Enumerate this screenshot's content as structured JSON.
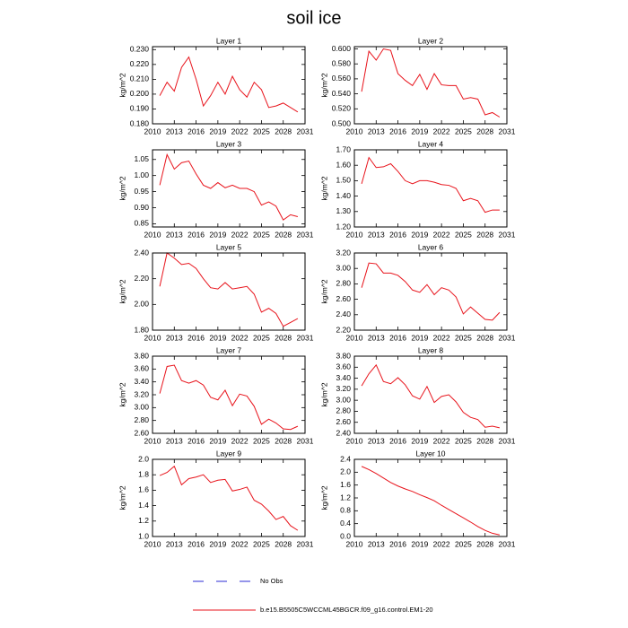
{
  "title": "soil ice",
  "legend": [
    {
      "name": "No Obs",
      "color": "#2b2bd6",
      "dashed": true
    },
    {
      "name": "b.e15.B5505C5WCCML45BGCR.f09_g16.control.EM1-20",
      "color": "#e8141c",
      "dashed": false
    }
  ],
  "chart_data": [
    {
      "type": "line",
      "title": "Layer 1",
      "ylabel": "kg/m^2",
      "color": "#e8141c",
      "x": [
        2011,
        2012,
        2013,
        2014,
        2015,
        2016,
        2017,
        2018,
        2019,
        2020,
        2021,
        2022,
        2023,
        2024,
        2025,
        2026,
        2027,
        2028,
        2029,
        2030
      ],
      "values": [
        0.199,
        0.208,
        0.202,
        0.218,
        0.225,
        0.21,
        0.192,
        0.199,
        0.208,
        0.2,
        0.212,
        0.203,
        0.198,
        0.208,
        0.203,
        0.191,
        0.192,
        0.194,
        0.191,
        0.188
      ],
      "xlim": [
        2010,
        2031
      ],
      "xticks": [
        2010,
        2013,
        2016,
        2019,
        2022,
        2025,
        2028,
        2031
      ],
      "ylim": [
        0.18,
        0.232
      ],
      "yticks": [
        {
          "value": 0.18,
          "label": "0.180"
        },
        {
          "value": 0.19,
          "label": "0.190"
        },
        {
          "value": 0.2,
          "label": "0.200"
        },
        {
          "value": 0.21,
          "label": "0.210"
        },
        {
          "value": 0.22,
          "label": "0.220"
        },
        {
          "value": 0.23,
          "label": "0.230"
        }
      ]
    },
    {
      "type": "line",
      "title": "Layer 2",
      "ylabel": "kg/m^2",
      "color": "#e8141c",
      "x": [
        2011,
        2012,
        2013,
        2014,
        2015,
        2016,
        2017,
        2018,
        2019,
        2020,
        2021,
        2022,
        2023,
        2024,
        2025,
        2026,
        2027,
        2028,
        2029,
        2030
      ],
      "values": [
        0.543,
        0.597,
        0.585,
        0.6,
        0.598,
        0.567,
        0.558,
        0.551,
        0.566,
        0.546,
        0.567,
        0.552,
        0.551,
        0.551,
        0.533,
        0.535,
        0.533,
        0.512,
        0.515,
        0.509
      ],
      "xlim": [
        2010,
        2031
      ],
      "xticks": [
        2010,
        2013,
        2016,
        2019,
        2022,
        2025,
        2028,
        2031
      ],
      "ylim": [
        0.5,
        0.603
      ],
      "yticks": [
        {
          "value": 0.5,
          "label": "0.500"
        },
        {
          "value": 0.52,
          "label": "0.520"
        },
        {
          "value": 0.54,
          "label": "0.540"
        },
        {
          "value": 0.56,
          "label": "0.560"
        },
        {
          "value": 0.58,
          "label": "0.580"
        },
        {
          "value": 0.6,
          "label": "0.600"
        }
      ]
    },
    {
      "type": "line",
      "title": "Layer 3",
      "ylabel": "kg/m^2",
      "color": "#e8141c",
      "x": [
        2011,
        2012,
        2013,
        2014,
        2015,
        2016,
        2017,
        2018,
        2019,
        2020,
        2021,
        2022,
        2023,
        2024,
        2025,
        2026,
        2027,
        2028,
        2029,
        2030
      ],
      "values": [
        0.97,
        1.065,
        1.02,
        1.04,
        1.045,
        1.005,
        0.97,
        0.96,
        0.978,
        0.962,
        0.97,
        0.96,
        0.96,
        0.95,
        0.908,
        0.918,
        0.905,
        0.862,
        0.878,
        0.872
      ],
      "xlim": [
        2010,
        2031
      ],
      "xticks": [
        2010,
        2013,
        2016,
        2019,
        2022,
        2025,
        2028,
        2031
      ],
      "ylim": [
        0.84,
        1.08
      ],
      "yticks": [
        {
          "value": 0.85,
          "label": "0.85"
        },
        {
          "value": 0.9,
          "label": "0.90"
        },
        {
          "value": 0.95,
          "label": "0.95"
        },
        {
          "value": 1.0,
          "label": "1.00"
        },
        {
          "value": 1.05,
          "label": "1.05"
        }
      ]
    },
    {
      "type": "line",
      "title": "Layer 4",
      "ylabel": "kg/m^2",
      "color": "#e8141c",
      "x": [
        2011,
        2012,
        2013,
        2014,
        2015,
        2016,
        2017,
        2018,
        2019,
        2020,
        2021,
        2022,
        2023,
        2024,
        2025,
        2026,
        2027,
        2028,
        2029,
        2030
      ],
      "values": [
        1.48,
        1.65,
        1.585,
        1.59,
        1.61,
        1.56,
        1.5,
        1.48,
        1.5,
        1.5,
        1.49,
        1.475,
        1.47,
        1.45,
        1.37,
        1.385,
        1.37,
        1.295,
        1.31,
        1.31
      ],
      "xlim": [
        2010,
        2031
      ],
      "xticks": [
        2010,
        2013,
        2016,
        2019,
        2022,
        2025,
        2028,
        2031
      ],
      "ylim": [
        1.2,
        1.7
      ],
      "yticks": [
        {
          "value": 1.2,
          "label": "1.20"
        },
        {
          "value": 1.3,
          "label": "1.30"
        },
        {
          "value": 1.4,
          "label": "1.40"
        },
        {
          "value": 1.5,
          "label": "1.50"
        },
        {
          "value": 1.6,
          "label": "1.60"
        },
        {
          "value": 1.7,
          "label": "1.70"
        }
      ]
    },
    {
      "type": "line",
      "title": "Layer 5",
      "ylabel": "kg/m^2",
      "color": "#e8141c",
      "x": [
        2011,
        2012,
        2013,
        2014,
        2015,
        2016,
        2017,
        2018,
        2019,
        2020,
        2021,
        2022,
        2023,
        2024,
        2025,
        2026,
        2027,
        2028,
        2029,
        2030
      ],
      "values": [
        2.14,
        2.4,
        2.36,
        2.31,
        2.32,
        2.28,
        2.2,
        2.13,
        2.12,
        2.17,
        2.12,
        2.13,
        2.14,
        2.08,
        1.94,
        1.97,
        1.93,
        1.83,
        1.86,
        1.89
      ],
      "xlim": [
        2010,
        2031
      ],
      "xticks": [
        2010,
        2013,
        2016,
        2019,
        2022,
        2025,
        2028,
        2031
      ],
      "ylim": [
        1.8,
        2.4
      ],
      "yticks": [
        {
          "value": 1.8,
          "label": "1.80"
        },
        {
          "value": 2.0,
          "label": "2.00"
        },
        {
          "value": 2.2,
          "label": "2.20"
        },
        {
          "value": 2.4,
          "label": "2.40"
        }
      ]
    },
    {
      "type": "line",
      "title": "Layer 6",
      "ylabel": "kg/m^2",
      "color": "#e8141c",
      "x": [
        2011,
        2012,
        2013,
        2014,
        2015,
        2016,
        2017,
        2018,
        2019,
        2020,
        2021,
        2022,
        2023,
        2024,
        2025,
        2026,
        2027,
        2028,
        2029,
        2030
      ],
      "values": [
        2.75,
        3.07,
        3.06,
        2.94,
        2.94,
        2.91,
        2.83,
        2.72,
        2.69,
        2.79,
        2.66,
        2.75,
        2.72,
        2.63,
        2.41,
        2.5,
        2.42,
        2.34,
        2.33,
        2.43
      ],
      "xlim": [
        2010,
        2031
      ],
      "xticks": [
        2010,
        2013,
        2016,
        2019,
        2022,
        2025,
        2028,
        2031
      ],
      "ylim": [
        2.2,
        3.2
      ],
      "yticks": [
        {
          "value": 2.2,
          "label": "2.20"
        },
        {
          "value": 2.4,
          "label": "2.40"
        },
        {
          "value": 2.6,
          "label": "2.60"
        },
        {
          "value": 2.8,
          "label": "2.80"
        },
        {
          "value": 3.0,
          "label": "3.00"
        },
        {
          "value": 3.2,
          "label": "3.20"
        }
      ]
    },
    {
      "type": "line",
      "title": "Layer 7",
      "ylabel": "kg/m^2",
      "color": "#e8141c",
      "x": [
        2011,
        2012,
        2013,
        2014,
        2015,
        2016,
        2017,
        2018,
        2019,
        2020,
        2021,
        2022,
        2023,
        2024,
        2025,
        2026,
        2027,
        2028,
        2029,
        2030
      ],
      "values": [
        3.22,
        3.64,
        3.66,
        3.42,
        3.38,
        3.42,
        3.35,
        3.16,
        3.12,
        3.27,
        3.03,
        3.21,
        3.18,
        3.02,
        2.74,
        2.82,
        2.76,
        2.67,
        2.66,
        2.71
      ],
      "xlim": [
        2010,
        2031
      ],
      "xticks": [
        2010,
        2013,
        2016,
        2019,
        2022,
        2025,
        2028,
        2031
      ],
      "ylim": [
        2.6,
        3.8
      ],
      "yticks": [
        {
          "value": 2.6,
          "label": "2.60"
        },
        {
          "value": 2.8,
          "label": "2.80"
        },
        {
          "value": 3.0,
          "label": "3.00"
        },
        {
          "value": 3.2,
          "label": "3.20"
        },
        {
          "value": 3.4,
          "label": "3.40"
        },
        {
          "value": 3.6,
          "label": "3.60"
        },
        {
          "value": 3.8,
          "label": "3.80"
        }
      ]
    },
    {
      "type": "line",
      "title": "Layer 8",
      "ylabel": "kg/m^2",
      "color": "#e8141c",
      "x": [
        2011,
        2012,
        2013,
        2014,
        2015,
        2016,
        2017,
        2018,
        2019,
        2020,
        2021,
        2022,
        2023,
        2024,
        2025,
        2026,
        2027,
        2028,
        2029,
        2030
      ],
      "values": [
        3.26,
        3.48,
        3.64,
        3.34,
        3.3,
        3.41,
        3.28,
        3.08,
        3.02,
        3.25,
        2.96,
        3.07,
        3.1,
        2.97,
        2.78,
        2.69,
        2.65,
        2.51,
        2.53,
        2.5
      ],
      "xlim": [
        2010,
        2031
      ],
      "xticks": [
        2010,
        2013,
        2016,
        2019,
        2022,
        2025,
        2028,
        2031
      ],
      "ylim": [
        2.4,
        3.8
      ],
      "yticks": [
        {
          "value": 2.4,
          "label": "2.40"
        },
        {
          "value": 2.6,
          "label": "2.60"
        },
        {
          "value": 2.8,
          "label": "2.80"
        },
        {
          "value": 3.0,
          "label": "3.00"
        },
        {
          "value": 3.2,
          "label": "3.20"
        },
        {
          "value": 3.4,
          "label": "3.40"
        },
        {
          "value": 3.6,
          "label": "3.60"
        },
        {
          "value": 3.8,
          "label": "3.80"
        }
      ]
    },
    {
      "type": "line",
      "title": "Layer 9",
      "ylabel": "kg/m^2",
      "color": "#e8141c",
      "x": [
        2011,
        2012,
        2013,
        2014,
        2015,
        2016,
        2017,
        2018,
        2019,
        2020,
        2021,
        2022,
        2023,
        2024,
        2025,
        2026,
        2027,
        2028,
        2029,
        2030
      ],
      "values": [
        1.79,
        1.83,
        1.91,
        1.67,
        1.75,
        1.77,
        1.8,
        1.7,
        1.73,
        1.74,
        1.59,
        1.61,
        1.64,
        1.47,
        1.42,
        1.33,
        1.22,
        1.26,
        1.14,
        1.08
      ],
      "xlim": [
        2010,
        2031
      ],
      "xticks": [
        2010,
        2013,
        2016,
        2019,
        2022,
        2025,
        2028,
        2031
      ],
      "ylim": [
        1.0,
        2.0
      ],
      "yticks": [
        {
          "value": 1.0,
          "label": "1.0"
        },
        {
          "value": 1.2,
          "label": "1.2"
        },
        {
          "value": 1.4,
          "label": "1.4"
        },
        {
          "value": 1.6,
          "label": "1.6"
        },
        {
          "value": 1.8,
          "label": "1.8"
        },
        {
          "value": 2.0,
          "label": "2.0"
        }
      ]
    },
    {
      "type": "line",
      "title": "Layer 10",
      "ylabel": "kg/m^2",
      "color": "#e8141c",
      "x": [
        2011,
        2012,
        2013,
        2014,
        2015,
        2016,
        2017,
        2018,
        2019,
        2020,
        2021,
        2022,
        2023,
        2024,
        2025,
        2026,
        2027,
        2028,
        2029,
        2030
      ],
      "values": [
        2.18,
        2.08,
        1.96,
        1.82,
        1.68,
        1.57,
        1.48,
        1.4,
        1.3,
        1.21,
        1.11,
        0.97,
        0.84,
        0.71,
        0.58,
        0.45,
        0.31,
        0.19,
        0.1,
        0.05
      ],
      "xlim": [
        2010,
        2031
      ],
      "xticks": [
        2010,
        2013,
        2016,
        2019,
        2022,
        2025,
        2028,
        2031
      ],
      "ylim": [
        0,
        2.4
      ],
      "yticks": [
        {
          "value": 0,
          "label": "0.0"
        },
        {
          "value": 0.4,
          "label": "0.4"
        },
        {
          "value": 0.8,
          "label": "0.8"
        },
        {
          "value": 1.2,
          "label": "1.2"
        },
        {
          "value": 1.6,
          "label": "1.6"
        },
        {
          "value": 2.0,
          "label": "2.0"
        },
        {
          "value": 2.4,
          "label": "2.4"
        }
      ]
    }
  ]
}
